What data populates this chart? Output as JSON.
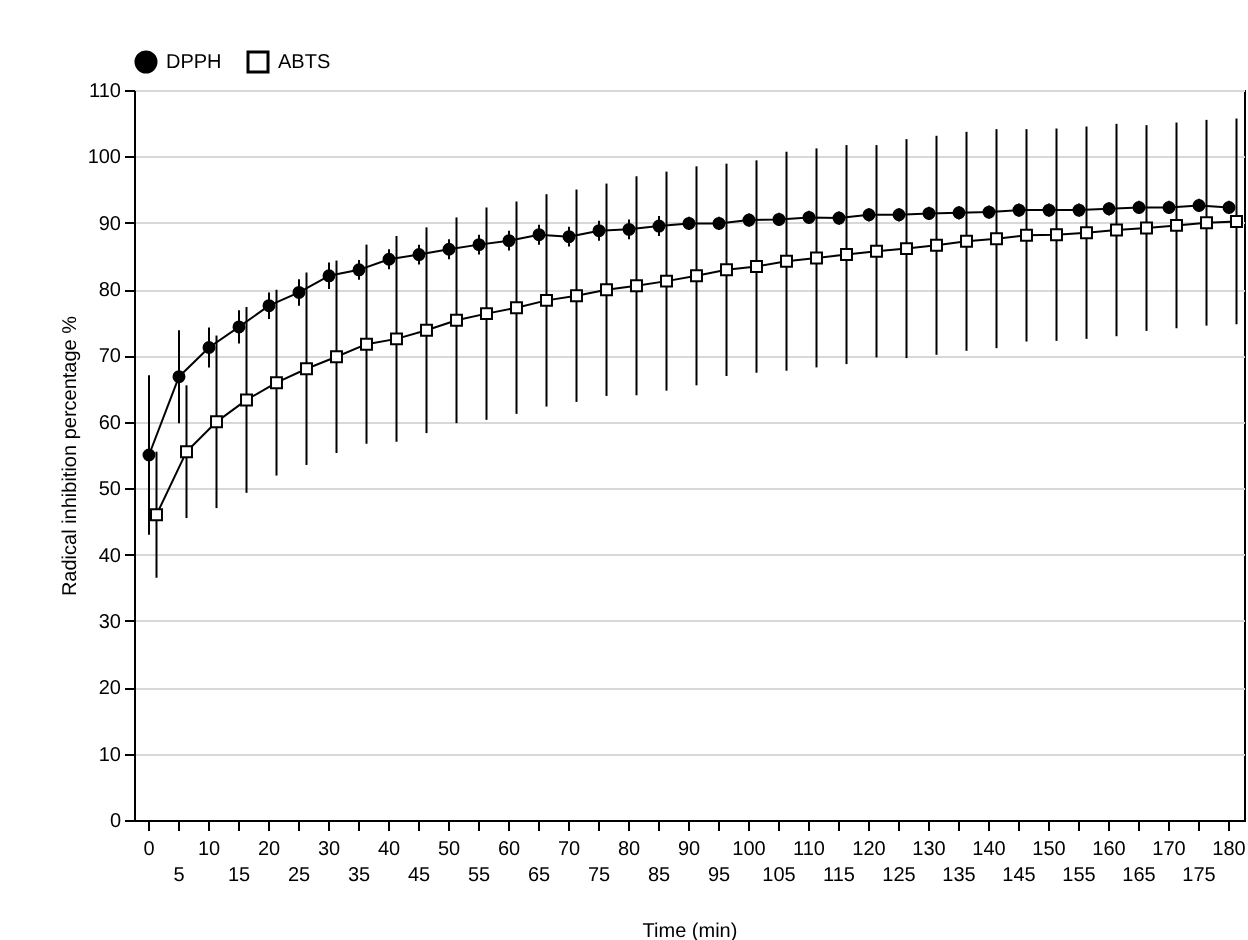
{
  "chart_data": {
    "type": "line",
    "xlabel": "Time (min)",
    "ylabel": "Radical inhibition percentage %",
    "categories": [
      "0",
      "5",
      "10",
      "15",
      "20",
      "25",
      "30",
      "35",
      "40",
      "45",
      "50",
      "55",
      "60",
      "65",
      "70",
      "75",
      "80",
      "85",
      "90",
      "95",
      "100",
      "105",
      "110",
      "115",
      "120",
      "125",
      "130",
      "135",
      "140",
      "145",
      "150",
      "155",
      "160",
      "165",
      "170",
      "175",
      "180"
    ],
    "series": [
      {
        "name": "DPPH",
        "color": "#000000",
        "marker": "circle",
        "values": [
          55,
          66.8,
          71.2,
          74.3,
          77.5,
          79.5,
          82,
          82.9,
          84.5,
          85.2,
          86,
          86.7,
          87.3,
          88.2,
          87.9,
          88.8,
          89,
          89.5,
          89.9,
          89.9,
          90.4,
          90.5,
          90.8,
          90.7,
          91.2,
          91.2,
          91.4,
          91.5,
          91.6,
          91.9,
          91.9,
          91.9,
          92.1,
          92.3,
          92.3,
          92.6,
          92.3
        ],
        "errors": [
          12,
          7,
          3,
          2.5,
          2,
          2,
          2,
          1.5,
          1.5,
          1.5,
          1.5,
          1.5,
          1.5,
          1.5,
          1.5,
          1.5,
          1.5,
          1.5,
          1,
          1,
          1,
          1,
          1,
          1,
          1,
          1,
          1,
          1,
          1,
          1,
          1,
          1,
          1,
          1,
          1,
          1,
          1
        ]
      },
      {
        "name": "ABTS",
        "color": "#000000",
        "marker": "square",
        "values": [
          46,
          55.5,
          60,
          63.3,
          65.9,
          68,
          69.8,
          71.7,
          72.5,
          73.8,
          75.3,
          76.3,
          77.2,
          78.3,
          79,
          79.9,
          80.5,
          81.2,
          82,
          82.9,
          83.4,
          84.2,
          84.7,
          85.2,
          85.7,
          86.1,
          86.6,
          87.2,
          87.6,
          88.1,
          88.2,
          88.5,
          88.9,
          89.2,
          89.6,
          90,
          90.2
        ],
        "errors": [
          9.5,
          10,
          13,
          14,
          14,
          14.5,
          14.5,
          15,
          15.5,
          15.5,
          15.5,
          16,
          16,
          16,
          16,
          16,
          16.5,
          16.5,
          16.5,
          16,
          16,
          16.5,
          16.5,
          16.5,
          16,
          16.5,
          16.5,
          16.5,
          16.5,
          16,
          16,
          16,
          16,
          15.5,
          15.5,
          15.5,
          15.5
        ]
      }
    ],
    "ylim": [
      0,
      110
    ],
    "yticks": [
      0,
      10,
      20,
      30,
      40,
      50,
      60,
      70,
      80,
      90,
      100,
      110
    ],
    "grid": "y",
    "legend": "top",
    "line_style": "solid"
  }
}
